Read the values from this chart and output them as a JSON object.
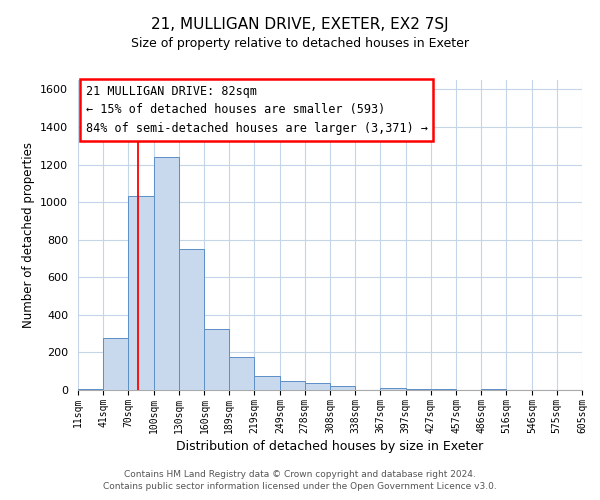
{
  "title_line1": "21, MULLIGAN DRIVE, EXETER, EX2 7SJ",
  "title_line2": "Size of property relative to detached houses in Exeter",
  "xlabel": "Distribution of detached houses by size in Exeter",
  "ylabel": "Number of detached properties",
  "bin_labels": [
    "11sqm",
    "41sqm",
    "70sqm",
    "100sqm",
    "130sqm",
    "160sqm",
    "189sqm",
    "219sqm",
    "249sqm",
    "278sqm",
    "308sqm",
    "338sqm",
    "367sqm",
    "397sqm",
    "427sqm",
    "457sqm",
    "486sqm",
    "516sqm",
    "546sqm",
    "575sqm",
    "605sqm"
  ],
  "bin_edges": [
    11,
    41,
    70,
    100,
    130,
    160,
    189,
    219,
    249,
    278,
    308,
    338,
    367,
    397,
    427,
    457,
    486,
    516,
    546,
    575,
    605
  ],
  "bar_heights": [
    5,
    275,
    1030,
    1240,
    750,
    325,
    175,
    75,
    50,
    35,
    20,
    0,
    10,
    5,
    5,
    0,
    5,
    0,
    0,
    0,
    5
  ],
  "bar_facecolor": "#c8d9ee",
  "bar_edgecolor": "#5b8fc7",
  "red_line_x": 82,
  "ylim": [
    0,
    1650
  ],
  "yticks": [
    0,
    200,
    400,
    600,
    800,
    1000,
    1200,
    1400,
    1600
  ],
  "annotation_line1": "21 MULLIGAN DRIVE: 82sqm",
  "annotation_line2": "← 15% of detached houses are smaller (593)",
  "annotation_line3": "84% of semi-detached houses are larger (3,371) →",
  "footer_line1": "Contains HM Land Registry data © Crown copyright and database right 2024.",
  "footer_line2": "Contains public sector information licensed under the Open Government Licence v3.0.",
  "background_color": "#ffffff",
  "grid_color": "#c5d5e8"
}
